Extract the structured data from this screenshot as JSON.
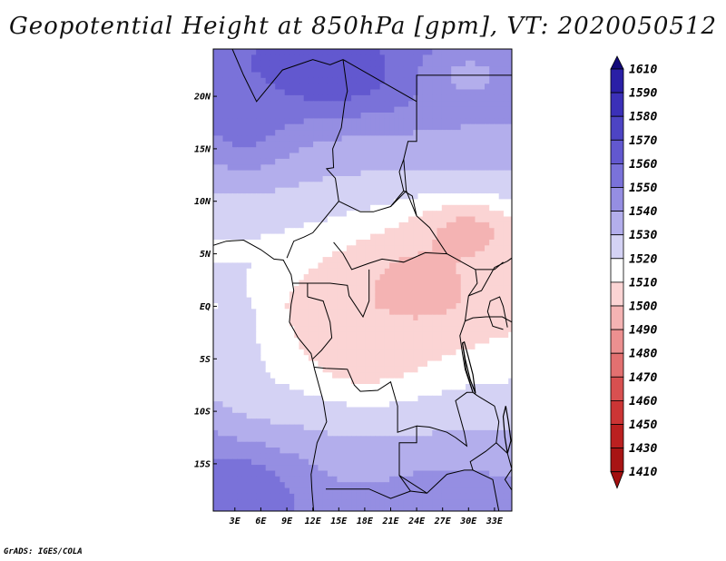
{
  "title": "Geopotential Height at 850hPa [gpm], VT: 2020050512",
  "credit": "GrADS: IGES/COLA",
  "map": {
    "region": "Central Africa",
    "lat_labels": [
      "20N",
      "15N",
      "10N",
      "5N",
      "EQ",
      "5S",
      "10S",
      "15S"
    ],
    "lat_values": [
      20,
      15,
      10,
      5,
      0,
      -5,
      -10,
      -15
    ],
    "lon_labels": [
      "3E",
      "6E",
      "9E",
      "12E",
      "15E",
      "18E",
      "21E",
      "24E",
      "27E",
      "30E",
      "33E"
    ],
    "lon_values": [
      3,
      6,
      9,
      12,
      15,
      18,
      21,
      24,
      27,
      30,
      33
    ],
    "lat_range": [
      -19.5,
      24.5
    ],
    "lon_range": [
      0.5,
      35
    ]
  },
  "colorbar": {
    "levels": [
      1610,
      1590,
      1580,
      1570,
      1560,
      1550,
      1540,
      1530,
      1520,
      1510,
      1500,
      1490,
      1480,
      1470,
      1460,
      1450,
      1430,
      1410
    ],
    "colors": [
      "#1a0f8c",
      "#2a1fa6",
      "#3b30b8",
      "#4d44c4",
      "#6258cf",
      "#7a72d9",
      "#958ee2",
      "#b3aeec",
      "#d4d2f4",
      "#ffffff",
      "#fbd4d4",
      "#f4b3b3",
      "#ec9090",
      "#e27070",
      "#d85050",
      "#cc3535",
      "#bb2020",
      "#a81414"
    ],
    "top_color": "#130a7a",
    "bottom_color": "#a30f0f"
  },
  "field": {
    "description_levels": "gpm",
    "blobs": [
      {
        "lon": 12,
        "lat": 22,
        "rx": 14,
        "ry": 4,
        "value": 1568
      },
      {
        "lon": 4,
        "lat": 18,
        "rx": 6,
        "ry": 5,
        "value": 1555
      },
      {
        "lon": 30,
        "lat": 22,
        "rx": 6,
        "ry": 3,
        "value": 1538
      },
      {
        "lon": 3,
        "lat": -18,
        "rx": 8,
        "ry": 5,
        "value": 1560
      },
      {
        "lon": 28,
        "lat": -19,
        "rx": 8,
        "ry": 4,
        "value": 1545
      },
      {
        "lon": 4,
        "lat": -2,
        "rx": 5,
        "ry": 8,
        "value": 1522
      },
      {
        "lon": 24,
        "lat": 2,
        "rx": 10,
        "ry": 6,
        "value": 1497
      },
      {
        "lon": 30,
        "lat": 7,
        "rx": 6,
        "ry": 3,
        "value": 1496
      },
      {
        "lon": 18,
        "lat": -3,
        "rx": 7,
        "ry": 5,
        "value": 1500
      }
    ]
  }
}
